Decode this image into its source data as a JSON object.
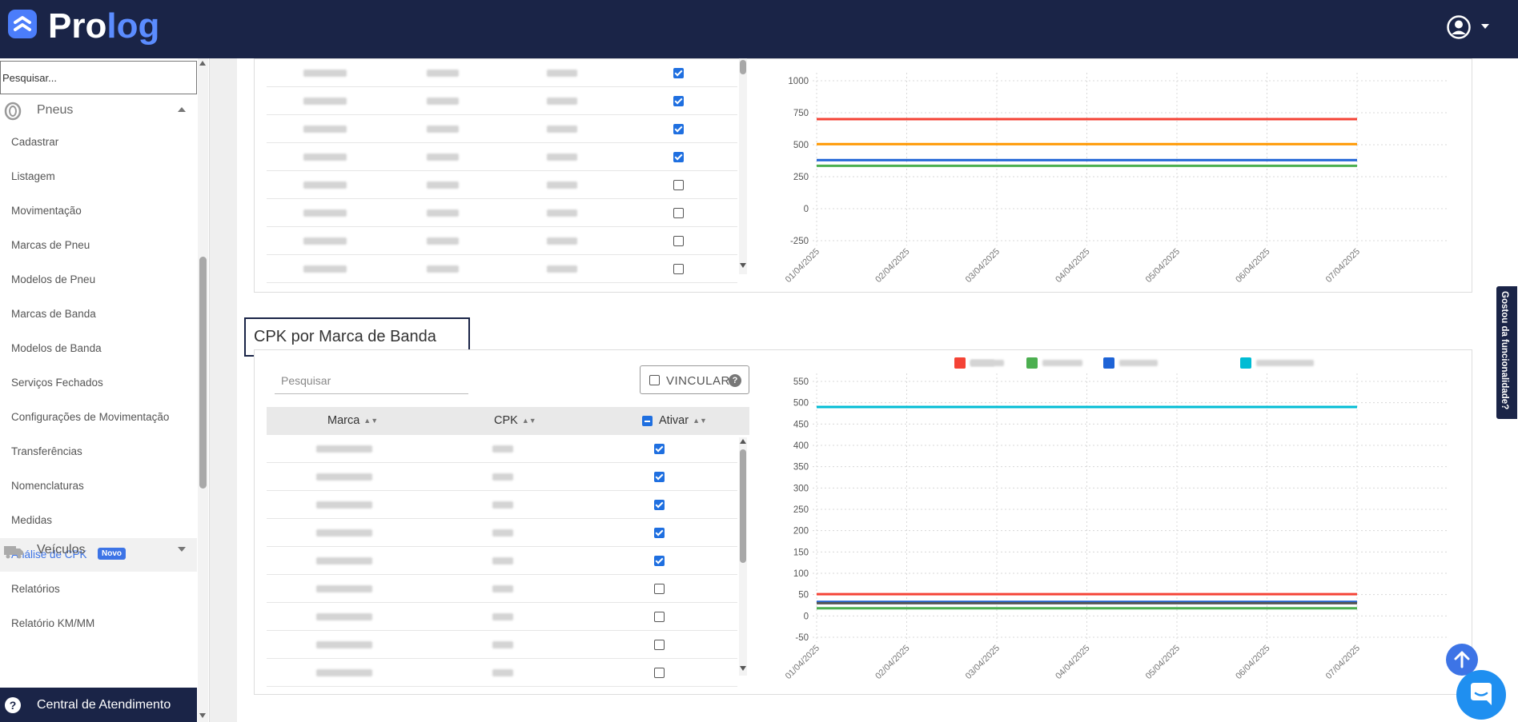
{
  "header": {
    "logo_part1": "Pro",
    "logo_part2": "log"
  },
  "sidebar": {
    "search_placeholder": "Pesquisar...",
    "section_pneus": "Pneus",
    "items": [
      {
        "label": "Cadastrar"
      },
      {
        "label": "Listagem"
      },
      {
        "label": "Movimentação"
      },
      {
        "label": "Marcas de Pneu"
      },
      {
        "label": "Modelos de Pneu"
      },
      {
        "label": "Marcas de Banda"
      },
      {
        "label": "Modelos de Banda"
      },
      {
        "label": "Serviços Fechados"
      },
      {
        "label": "Configurações de Movimentação"
      },
      {
        "label": "Transferências"
      },
      {
        "label": "Nomenclaturas"
      },
      {
        "label": "Medidas"
      },
      {
        "label": "Análise de CPK",
        "badge": "Novo",
        "active": true
      },
      {
        "label": "Relatórios"
      },
      {
        "label": "Relatório KM/MM"
      }
    ],
    "section_veiculos": "Veículos",
    "help": "Central de Atendimento"
  },
  "section_banda": {
    "title": "CPK por Marca de Banda",
    "search_placeholder": "Pesquisar",
    "vincular_label": "VINCULAR",
    "columns": [
      "Marca",
      "CPK",
      "Ativar"
    ],
    "rows_checked": [
      true,
      true,
      true,
      true,
      true,
      false,
      false,
      false,
      false
    ]
  },
  "top_table": {
    "rows_checked": [
      true,
      true,
      true,
      true,
      false,
      false,
      false,
      false
    ]
  },
  "feedback_label": "Gostou da funcionalidade?",
  "chart_data": [
    {
      "type": "line",
      "x": [
        "01/04/2025",
        "02/04/2025",
        "03/04/2025",
        "04/04/2025",
        "05/04/2025",
        "06/04/2025",
        "07/04/2025"
      ],
      "y_ticks": [
        "1000",
        "750",
        "500",
        "250",
        "0",
        "-250"
      ],
      "ylim": [
        -250,
        1000
      ],
      "series": [
        {
          "color": "#f44336",
          "values": [
            700,
            700,
            700,
            700,
            700,
            700,
            700
          ]
        },
        {
          "color": "#ff9800",
          "values": [
            505,
            505,
            505,
            505,
            505,
            505,
            505
          ]
        },
        {
          "color": "#1e63d6",
          "values": [
            380,
            380,
            380,
            380,
            380,
            380,
            380
          ]
        },
        {
          "color": "#4caf50",
          "values": [
            335,
            335,
            335,
            335,
            335,
            335,
            335
          ]
        }
      ],
      "grid": true
    },
    {
      "type": "line",
      "x": [
        "01/04/2025",
        "02/04/2025",
        "03/04/2025",
        "04/04/2025",
        "05/04/2025",
        "06/04/2025",
        "07/04/2025"
      ],
      "y_ticks": [
        "550",
        "500",
        "450",
        "400",
        "350",
        "300",
        "250",
        "200",
        "150",
        "100",
        "50",
        "0",
        "-50"
      ],
      "ylim": [
        -50,
        550
      ],
      "series": [
        {
          "color": "#00bcd4",
          "values": [
            490,
            490,
            490,
            490,
            490,
            490,
            490
          ]
        },
        {
          "color": "#f44336",
          "values": [
            51,
            51,
            51,
            51,
            51,
            51,
            51
          ]
        },
        {
          "color": "#1e63d6",
          "values": [
            33,
            33,
            33,
            33,
            33,
            33,
            33
          ]
        },
        {
          "color": "#555555",
          "values": [
            30,
            30,
            30,
            30,
            30,
            30,
            30
          ]
        },
        {
          "color": "#4caf50",
          "values": [
            18,
            18,
            18,
            18,
            18,
            18,
            18
          ]
        }
      ],
      "legend_colors": [
        "#ff9800",
        "#4caf50",
        "#1e63d6",
        "#00bcd4",
        "#f44336"
      ],
      "legend_position": "top",
      "grid": true
    }
  ]
}
